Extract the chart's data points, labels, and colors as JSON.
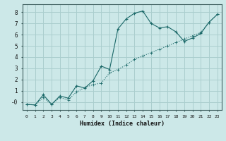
{
  "xlabel": "Humidex (Indice chaleur)",
  "bg_color": "#cce8e8",
  "grid_color": "#aacece",
  "line_color": "#1a6868",
  "xlim": [
    -0.5,
    23.5
  ],
  "ylim": [
    -0.7,
    8.7
  ],
  "xticks": [
    0,
    1,
    2,
    3,
    4,
    5,
    6,
    7,
    8,
    9,
    10,
    11,
    12,
    13,
    14,
    15,
    16,
    17,
    18,
    19,
    20,
    21,
    22,
    23
  ],
  "yticks": [
    0,
    1,
    2,
    3,
    4,
    5,
    6,
    7,
    8
  ],
  "curve1_x": [
    0,
    1,
    2,
    3,
    4,
    5,
    6,
    7,
    8,
    9,
    10,
    11,
    12,
    13,
    14,
    15,
    16,
    17,
    18,
    19,
    20,
    21,
    22,
    23
  ],
  "curve1_y": [
    -0.2,
    -0.25,
    0.65,
    -0.2,
    0.55,
    0.35,
    1.45,
    1.25,
    1.9,
    3.2,
    2.9,
    6.5,
    7.4,
    7.9,
    8.1,
    7.0,
    6.6,
    6.7,
    6.25,
    5.4,
    5.7,
    6.1,
    7.1,
    7.8
  ],
  "curve2_x": [
    0,
    1,
    2,
    3,
    4,
    5,
    6,
    7,
    8,
    9,
    10,
    11,
    12,
    13,
    14,
    15,
    16,
    17,
    18,
    19,
    20,
    21,
    22,
    23
  ],
  "curve2_y": [
    -0.2,
    -0.25,
    0.4,
    -0.2,
    0.4,
    0.2,
    0.9,
    1.3,
    1.55,
    1.7,
    2.6,
    2.9,
    3.3,
    3.8,
    4.1,
    4.4,
    4.7,
    5.0,
    5.3,
    5.6,
    5.9,
    6.2,
    7.1,
    7.8
  ]
}
